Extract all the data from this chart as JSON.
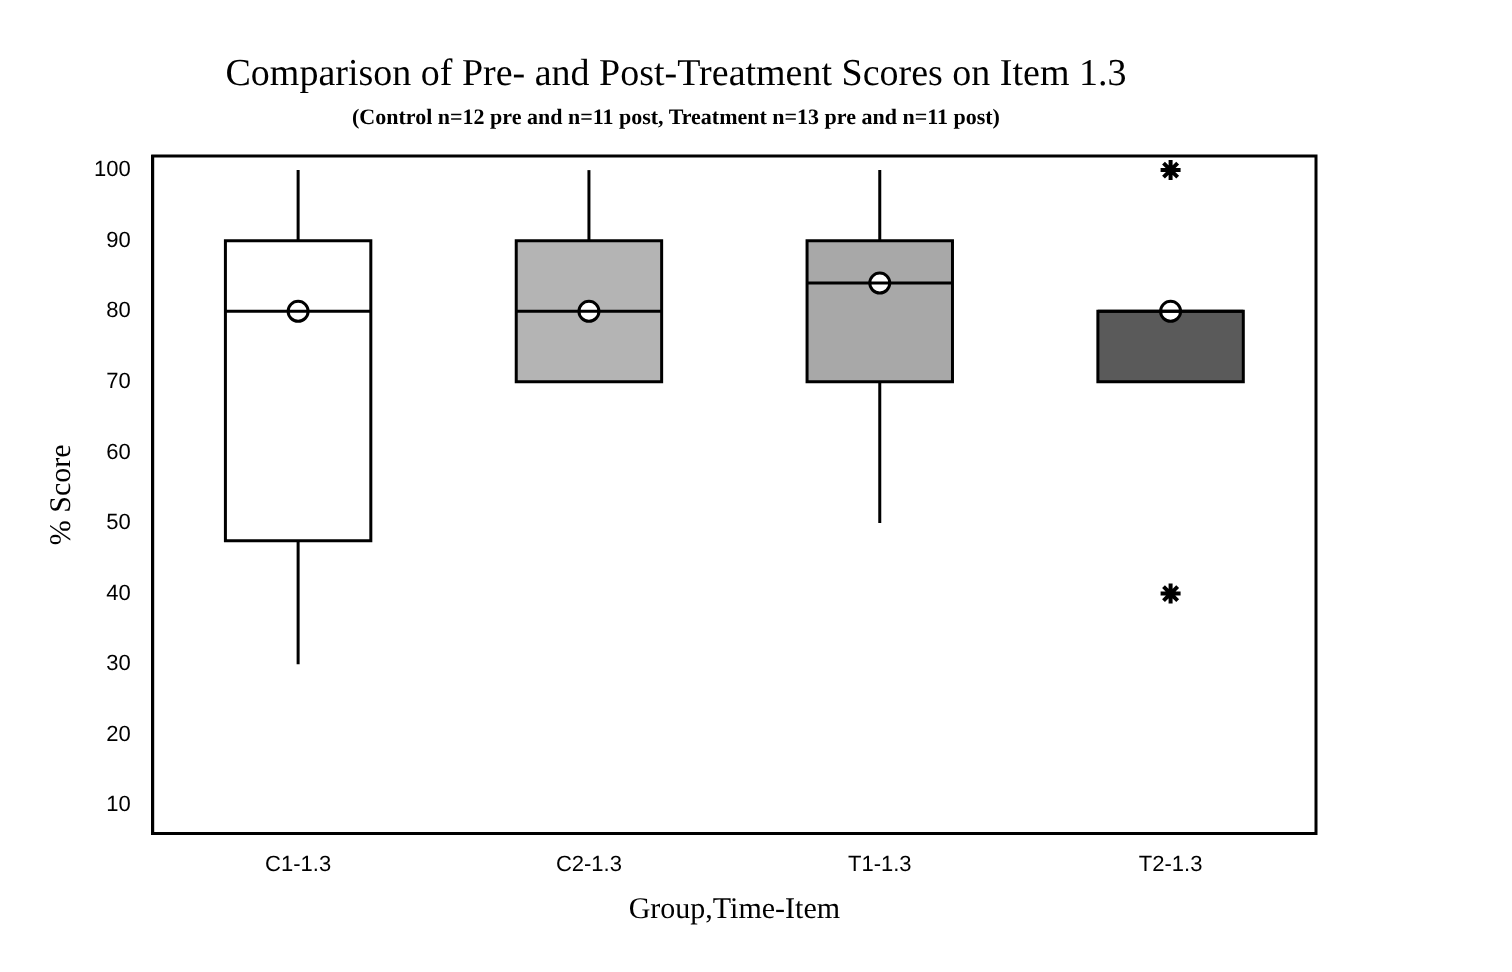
{
  "chart_data": {
    "type": "box",
    "title": "Comparison of Pre- and Post-Treatment Scores on Item 1.3",
    "subtitle": "(Control n=12 pre and n=11 post, Treatment n=13 pre and n=11 post)",
    "xlabel": "Group,Time-Item",
    "ylabel": "% Score",
    "categories": [
      "C1-1.3",
      "C2-1.3",
      "T1-1.3",
      "T2-1.3"
    ],
    "boxes": [
      {
        "low": 30,
        "q1": 47.5,
        "median": 80,
        "q3": 90,
        "high": 100,
        "mean": 80
      },
      {
        "low": 70,
        "q1": 70,
        "median": 80,
        "q3": 90,
        "high": 100,
        "mean": 80
      },
      {
        "low": 50,
        "q1": 70,
        "median": 84,
        "q3": 90,
        "high": 100,
        "mean": 84
      },
      {
        "low": 70,
        "q1": 70,
        "median": 80,
        "q3": 80,
        "high": 80,
        "mean": 80,
        "outliers": [
          100,
          40
        ]
      }
    ],
    "colors": [
      "#ffffff",
      "#b4b4b4",
      "#a8a8a8",
      "#5a5a5a"
    ],
    "ylim": [
      6,
      102
    ],
    "yticks": [
      10,
      20,
      30,
      40,
      50,
      60,
      70,
      80,
      90,
      100
    ],
    "grid": false,
    "legend": false
  }
}
